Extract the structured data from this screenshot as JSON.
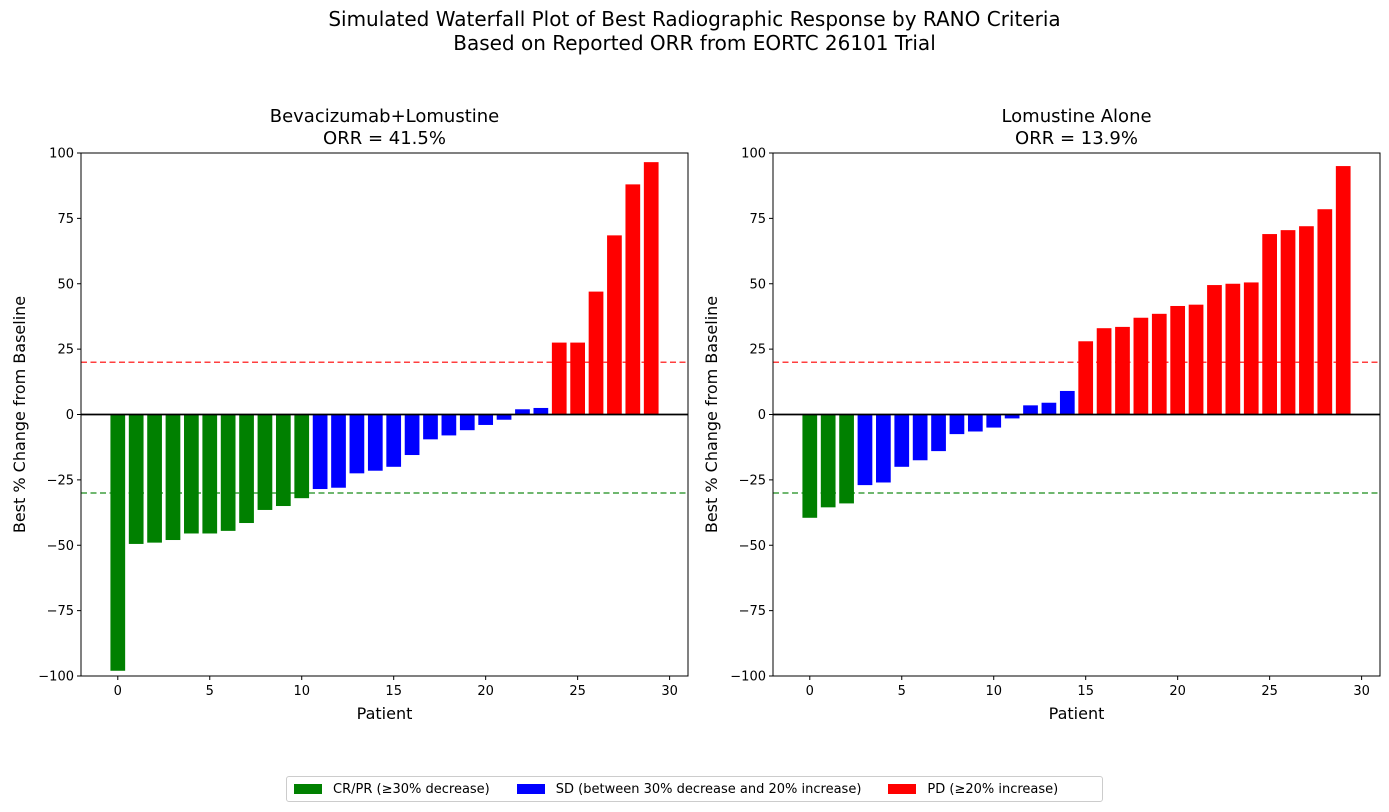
{
  "figure": {
    "title_line1": "Simulated Waterfall Plot of Best Radiographic Response by RANO Criteria",
    "title_line2": "Based on Reported ORR from EORTC 26101 Trial"
  },
  "colors": {
    "cr_pr": "#008000",
    "sd": "#0000ff",
    "pd": "#ff0000",
    "pd_threshold_line": "#ff0000",
    "cr_threshold_line": "#008000"
  },
  "legend": [
    {
      "label": "CR/PR (≥30% decrease)",
      "color": "#008000"
    },
    {
      "label": "SD (between 30% decrease and 20% increase)",
      "color": "#0000ff"
    },
    {
      "label": "PD (≥20% increase)",
      "color": "#ff0000"
    }
  ],
  "chart_data": [
    {
      "type": "bar",
      "title_line1": "Bevacizumab+Lomustine",
      "title_line2": "ORR = 41.5%",
      "xlabel": "Patient",
      "ylabel": "Best % Change from Baseline",
      "xlim": [
        -2,
        31
      ],
      "ylim": [
        -100,
        100
      ],
      "xticks": [
        0,
        5,
        10,
        15,
        20,
        25,
        30
      ],
      "yticks": [
        -100,
        -75,
        -50,
        -25,
        0,
        25,
        50,
        75,
        100
      ],
      "reference_lines": [
        20,
        -30,
        0
      ],
      "x": [
        0,
        1,
        2,
        3,
        4,
        5,
        6,
        7,
        8,
        9,
        10,
        11,
        12,
        13,
        14,
        15,
        16,
        17,
        18,
        19,
        20,
        21,
        22,
        23,
        24,
        25,
        26,
        27,
        28,
        29
      ],
      "values": [
        -98,
        -49.5,
        -49,
        -48,
        -45.5,
        -45.5,
        -44.5,
        -41.5,
        -36.5,
        -35,
        -32,
        -28.5,
        -28,
        -22.5,
        -21.5,
        -20,
        -15.5,
        -9.5,
        -8,
        -6,
        -4,
        -2,
        2,
        2.5,
        27.5,
        27.5,
        47,
        68.5,
        88,
        96.5
      ],
      "categories": [
        "CR/PR",
        "CR/PR",
        "CR/PR",
        "CR/PR",
        "CR/PR",
        "CR/PR",
        "CR/PR",
        "CR/PR",
        "CR/PR",
        "CR/PR",
        "CR/PR",
        "SD",
        "SD",
        "SD",
        "SD",
        "SD",
        "SD",
        "SD",
        "SD",
        "SD",
        "SD",
        "SD",
        "SD",
        "SD",
        "PD",
        "PD",
        "PD",
        "PD",
        "PD",
        "PD"
      ]
    },
    {
      "type": "bar",
      "title_line1": "Lomustine Alone",
      "title_line2": "ORR = 13.9%",
      "xlabel": "Patient",
      "ylabel": "Best % Change from Baseline",
      "xlim": [
        -2,
        31
      ],
      "ylim": [
        -100,
        100
      ],
      "xticks": [
        0,
        5,
        10,
        15,
        20,
        25,
        30
      ],
      "yticks": [
        -100,
        -75,
        -50,
        -25,
        0,
        25,
        50,
        75,
        100
      ],
      "reference_lines": [
        20,
        -30,
        0
      ],
      "x": [
        0,
        1,
        2,
        3,
        4,
        5,
        6,
        7,
        8,
        9,
        10,
        11,
        12,
        13,
        14,
        15,
        16,
        17,
        18,
        19,
        20,
        21,
        22,
        23,
        24,
        25,
        26,
        27,
        28,
        29
      ],
      "values": [
        -39.5,
        -35.5,
        -34,
        -27,
        -26,
        -20,
        -17.5,
        -14,
        -7.5,
        -6.5,
        -5,
        -1.5,
        3.5,
        4.5,
        9,
        28,
        33,
        33.5,
        37,
        38.5,
        41.5,
        42,
        49.5,
        50,
        50.5,
        69,
        70.5,
        72,
        78.5,
        95
      ],
      "categories": [
        "CR/PR",
        "CR/PR",
        "CR/PR",
        "SD",
        "SD",
        "SD",
        "SD",
        "SD",
        "SD",
        "SD",
        "SD",
        "SD",
        "SD",
        "SD",
        "SD",
        "PD",
        "PD",
        "PD",
        "PD",
        "PD",
        "PD",
        "PD",
        "PD",
        "PD",
        "PD",
        "PD",
        "PD",
        "PD",
        "PD",
        "PD"
      ]
    }
  ]
}
